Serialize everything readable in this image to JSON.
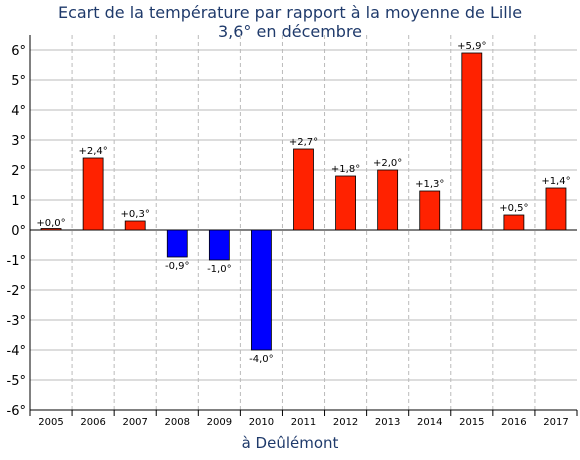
{
  "chart_data": {
    "type": "bar",
    "title": "Ecart de la température par rapport à la moyenne de Lille",
    "subtitle": "3,6° en décembre",
    "xlabel": "à Deûlémont",
    "ylabel": "",
    "ylim": [
      -6,
      6.5
    ],
    "yticks": [
      6,
      5,
      4,
      3,
      2,
      1,
      0,
      -1,
      -2,
      -3,
      -4,
      -5,
      -6
    ],
    "ytick_labels": [
      "6°",
      "5°",
      "4°",
      "3°",
      "2°",
      "1°",
      "0°",
      "-1°",
      "-2°",
      "-3°",
      "-4°",
      "-5°",
      "-6°"
    ],
    "categories": [
      "2005",
      "2006",
      "2007",
      "2008",
      "2009",
      "2010",
      "2011",
      "2012",
      "2013",
      "2014",
      "2015",
      "2016",
      "2017"
    ],
    "values": [
      0.0,
      2.4,
      0.3,
      -0.9,
      -1.0,
      -4.0,
      2.7,
      1.8,
      2.0,
      1.3,
      5.9,
      0.5,
      1.4
    ],
    "data_labels": [
      "+0,0°",
      "+2,4°",
      "+0,3°",
      "-0,9°",
      "-1,0°",
      "-4,0°",
      "+2,7°",
      "+1,8°",
      "+2,0°",
      "+1,3°",
      "+5,9°",
      "+0,5°",
      "+1,4°"
    ],
    "grid": true,
    "colors": {
      "positive": "#ff2200",
      "negative": "#0000ff",
      "grid": "#bbbbbb",
      "title": "#1f3a6b"
    }
  }
}
